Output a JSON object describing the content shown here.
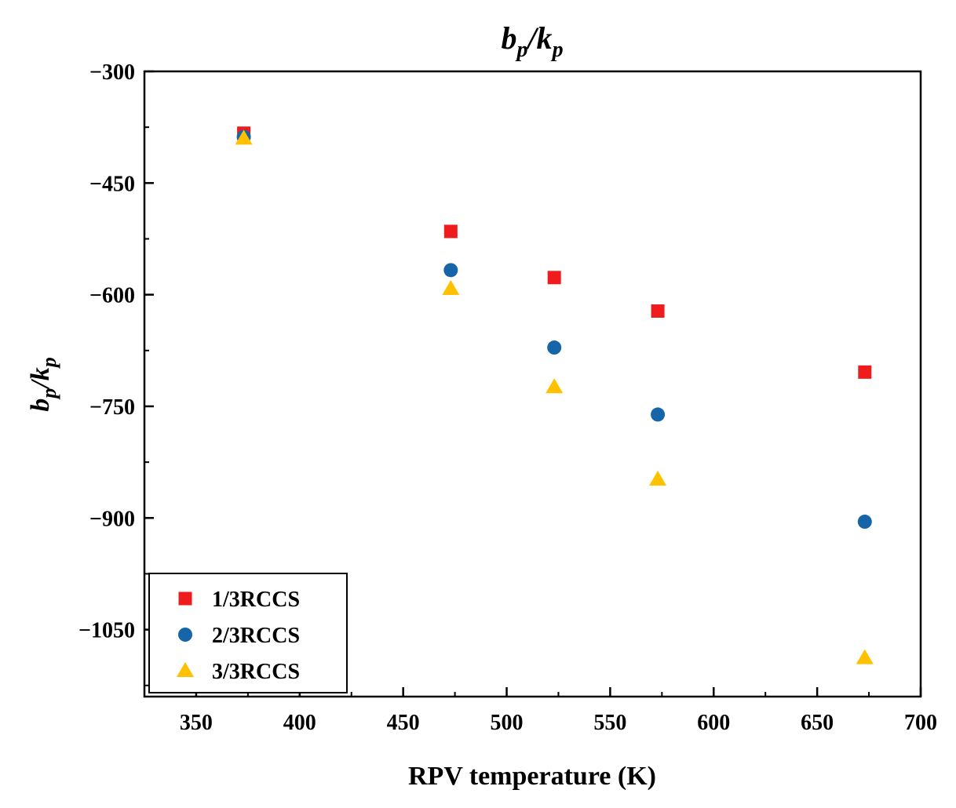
{
  "chart_data": {
    "type": "scatter",
    "title_main": "b",
    "title_sub1": "p",
    "title_slash": "/k",
    "title_sub2": "p",
    "xlabel": "RPV temperature (K)",
    "ylabel_main": "b",
    "ylabel_sub1": "p",
    "ylabel_slash": "/k",
    "ylabel_sub2": "p",
    "xlim": [
      325,
      700
    ],
    "ylim": [
      -1140,
      -300
    ],
    "x_ticks": [
      350,
      400,
      450,
      500,
      550,
      600,
      650,
      700
    ],
    "y_ticks": [
      -300,
      -450,
      -600,
      -750,
      -900,
      -1050
    ],
    "x_tick_labels": [
      "350",
      "400",
      "450",
      "500",
      "550",
      "600",
      "650",
      "700"
    ],
    "y_tick_labels": [
      "−300",
      "−450",
      "−600",
      "−750",
      "−900",
      "−1050"
    ],
    "legend_position": "bottom-left",
    "series": [
      {
        "name": "1/3RCCS",
        "marker": "square",
        "color": "#ee1c1c",
        "x": [
          373,
          473,
          523,
          573,
          673
        ],
        "y": [
          -383,
          -515,
          -577,
          -622,
          -704
        ]
      },
      {
        "name": "2/3RCCS",
        "marker": "circle",
        "color": "#1565a8",
        "x": [
          373,
          473,
          523,
          573,
          673
        ],
        "y": [
          -388,
          -567,
          -671,
          -761,
          -905
        ]
      },
      {
        "name": "3/3RCCS",
        "marker": "triangle",
        "color": "#ffc000",
        "x": [
          373,
          473,
          523,
          573,
          673
        ],
        "y": [
          -390,
          -592,
          -724,
          -848,
          -1088
        ]
      }
    ]
  }
}
